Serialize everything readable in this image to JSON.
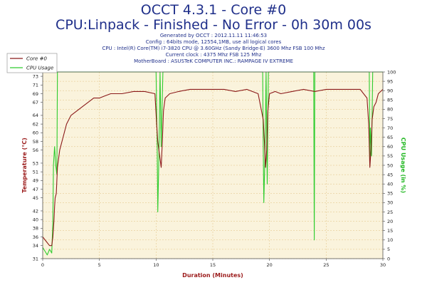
{
  "header": {
    "title": "OCCT 4.3.1 - Core #0",
    "subtitle": "CPU:Linpack - Finished - No Error - 0h 30m 00s",
    "info_lines": [
      "Generated by OCCT : 2012.11.11 11:46:53",
      "Config : 64bits mode, 12554,1MB, use all logical cores",
      "CPU : Intel(R) Core(TM) i7-3820 CPU @ 3.60GHz (Sandy Bridge-E) 3600 Mhz FSB 100 Mhz",
      "Current clock : 4375 Mhz FSB 125 Mhz",
      "MotherBoard : ASUSTeK COMPUTER INC.: RAMPAGE IV EXTREME"
    ]
  },
  "colors": {
    "temperature": "#8b1a1a",
    "cpu_usage": "#2ecc2e",
    "plot_bg": "#faf3dc",
    "grid": "#e0c080",
    "axis_title_left": "#9b1a1a",
    "axis_title_right": "#22b822"
  },
  "chart_data": {
    "type": "line",
    "xlabel": "Duration (Minutes)",
    "ylabel": "Temperature (°C)",
    "y2label": "CPU Usage (in %)",
    "xlim": [
      0,
      30
    ],
    "ylim": [
      31,
      74
    ],
    "y2lim": [
      0,
      100
    ],
    "xticks": [
      0,
      5,
      10,
      15,
      20,
      25,
      30
    ],
    "yticks": [
      31,
      34,
      36,
      38,
      40,
      42,
      45,
      47,
      49,
      51,
      53,
      56,
      58,
      60,
      62,
      64,
      67,
      69,
      71,
      73
    ],
    "y2ticks": [
      0,
      5,
      10,
      15,
      20,
      25,
      30,
      35,
      40,
      45,
      50,
      55,
      60,
      65,
      70,
      75,
      80,
      85,
      90,
      95,
      100
    ],
    "grid": true,
    "legend_position": "top-left",
    "series": [
      {
        "name": "Core #0",
        "axis": "left",
        "x": [
          0,
          0.3,
          0.6,
          0.8,
          0.9,
          1.0,
          1.05,
          1.1,
          1.2,
          1.3,
          1.5,
          1.8,
          2.1,
          2.5,
          3.0,
          3.5,
          4.0,
          4.5,
          5.0,
          5.5,
          6.0,
          7.0,
          8.0,
          9.0,
          9.9,
          10.05,
          10.15,
          10.3,
          10.45,
          10.55,
          10.65,
          10.8,
          11.2,
          12.0,
          13.0,
          14.0,
          15.0,
          16.0,
          17.0,
          18.0,
          19.0,
          19.45,
          19.55,
          19.65,
          19.75,
          19.85,
          20.0,
          20.5,
          21.0,
          22.0,
          23.0,
          24.0,
          25.0,
          26.0,
          27.0,
          28.0,
          28.6,
          28.75,
          28.85,
          28.95,
          29.05,
          29.2,
          29.4,
          29.6,
          30.0
        ],
        "values": [
          36,
          35,
          34,
          34,
          36,
          40,
          43,
          45,
          46,
          52,
          56,
          59,
          62,
          64,
          65,
          66,
          67,
          68,
          68,
          68.5,
          69,
          69,
          69.5,
          69.5,
          69,
          62,
          58,
          55,
          52,
          58,
          65,
          68,
          69,
          69.5,
          70,
          70,
          70,
          70,
          69.5,
          70,
          69,
          63,
          58,
          52,
          56,
          65,
          69,
          69.5,
          69,
          69.5,
          70,
          69.5,
          70,
          70,
          70,
          70,
          68,
          62,
          52,
          56,
          63,
          66,
          67,
          69,
          70
        ]
      },
      {
        "name": "CPU Usage",
        "axis": "right",
        "x": [
          0,
          0.2,
          0.4,
          0.6,
          0.8,
          0.9,
          0.95,
          1.0,
          1.05,
          1.15,
          1.25,
          1.3,
          1.32,
          1.5,
          2.0,
          5.0,
          10.0,
          10.1,
          10.15,
          10.25,
          10.35,
          10.45,
          10.6,
          10.65,
          10.8,
          12.0,
          19.4,
          19.45,
          19.5,
          19.6,
          19.7,
          19.8,
          19.9,
          20.0,
          23.9,
          23.95,
          24.0,
          24.05,
          24.1,
          28.8,
          28.85,
          28.9,
          29.0,
          29.1,
          29.15,
          29.2,
          30.0
        ],
        "values": [
          6,
          4,
          2,
          5,
          3,
          20,
          50,
          55,
          60,
          50,
          45,
          100,
          100,
          100,
          100,
          100,
          100,
          60,
          25,
          55,
          100,
          60,
          100,
          100,
          100,
          100,
          100,
          60,
          30,
          55,
          100,
          40,
          100,
          100,
          100,
          10,
          100,
          100,
          100,
          100,
          50,
          70,
          55,
          100,
          100,
          100,
          100
        ]
      }
    ]
  }
}
